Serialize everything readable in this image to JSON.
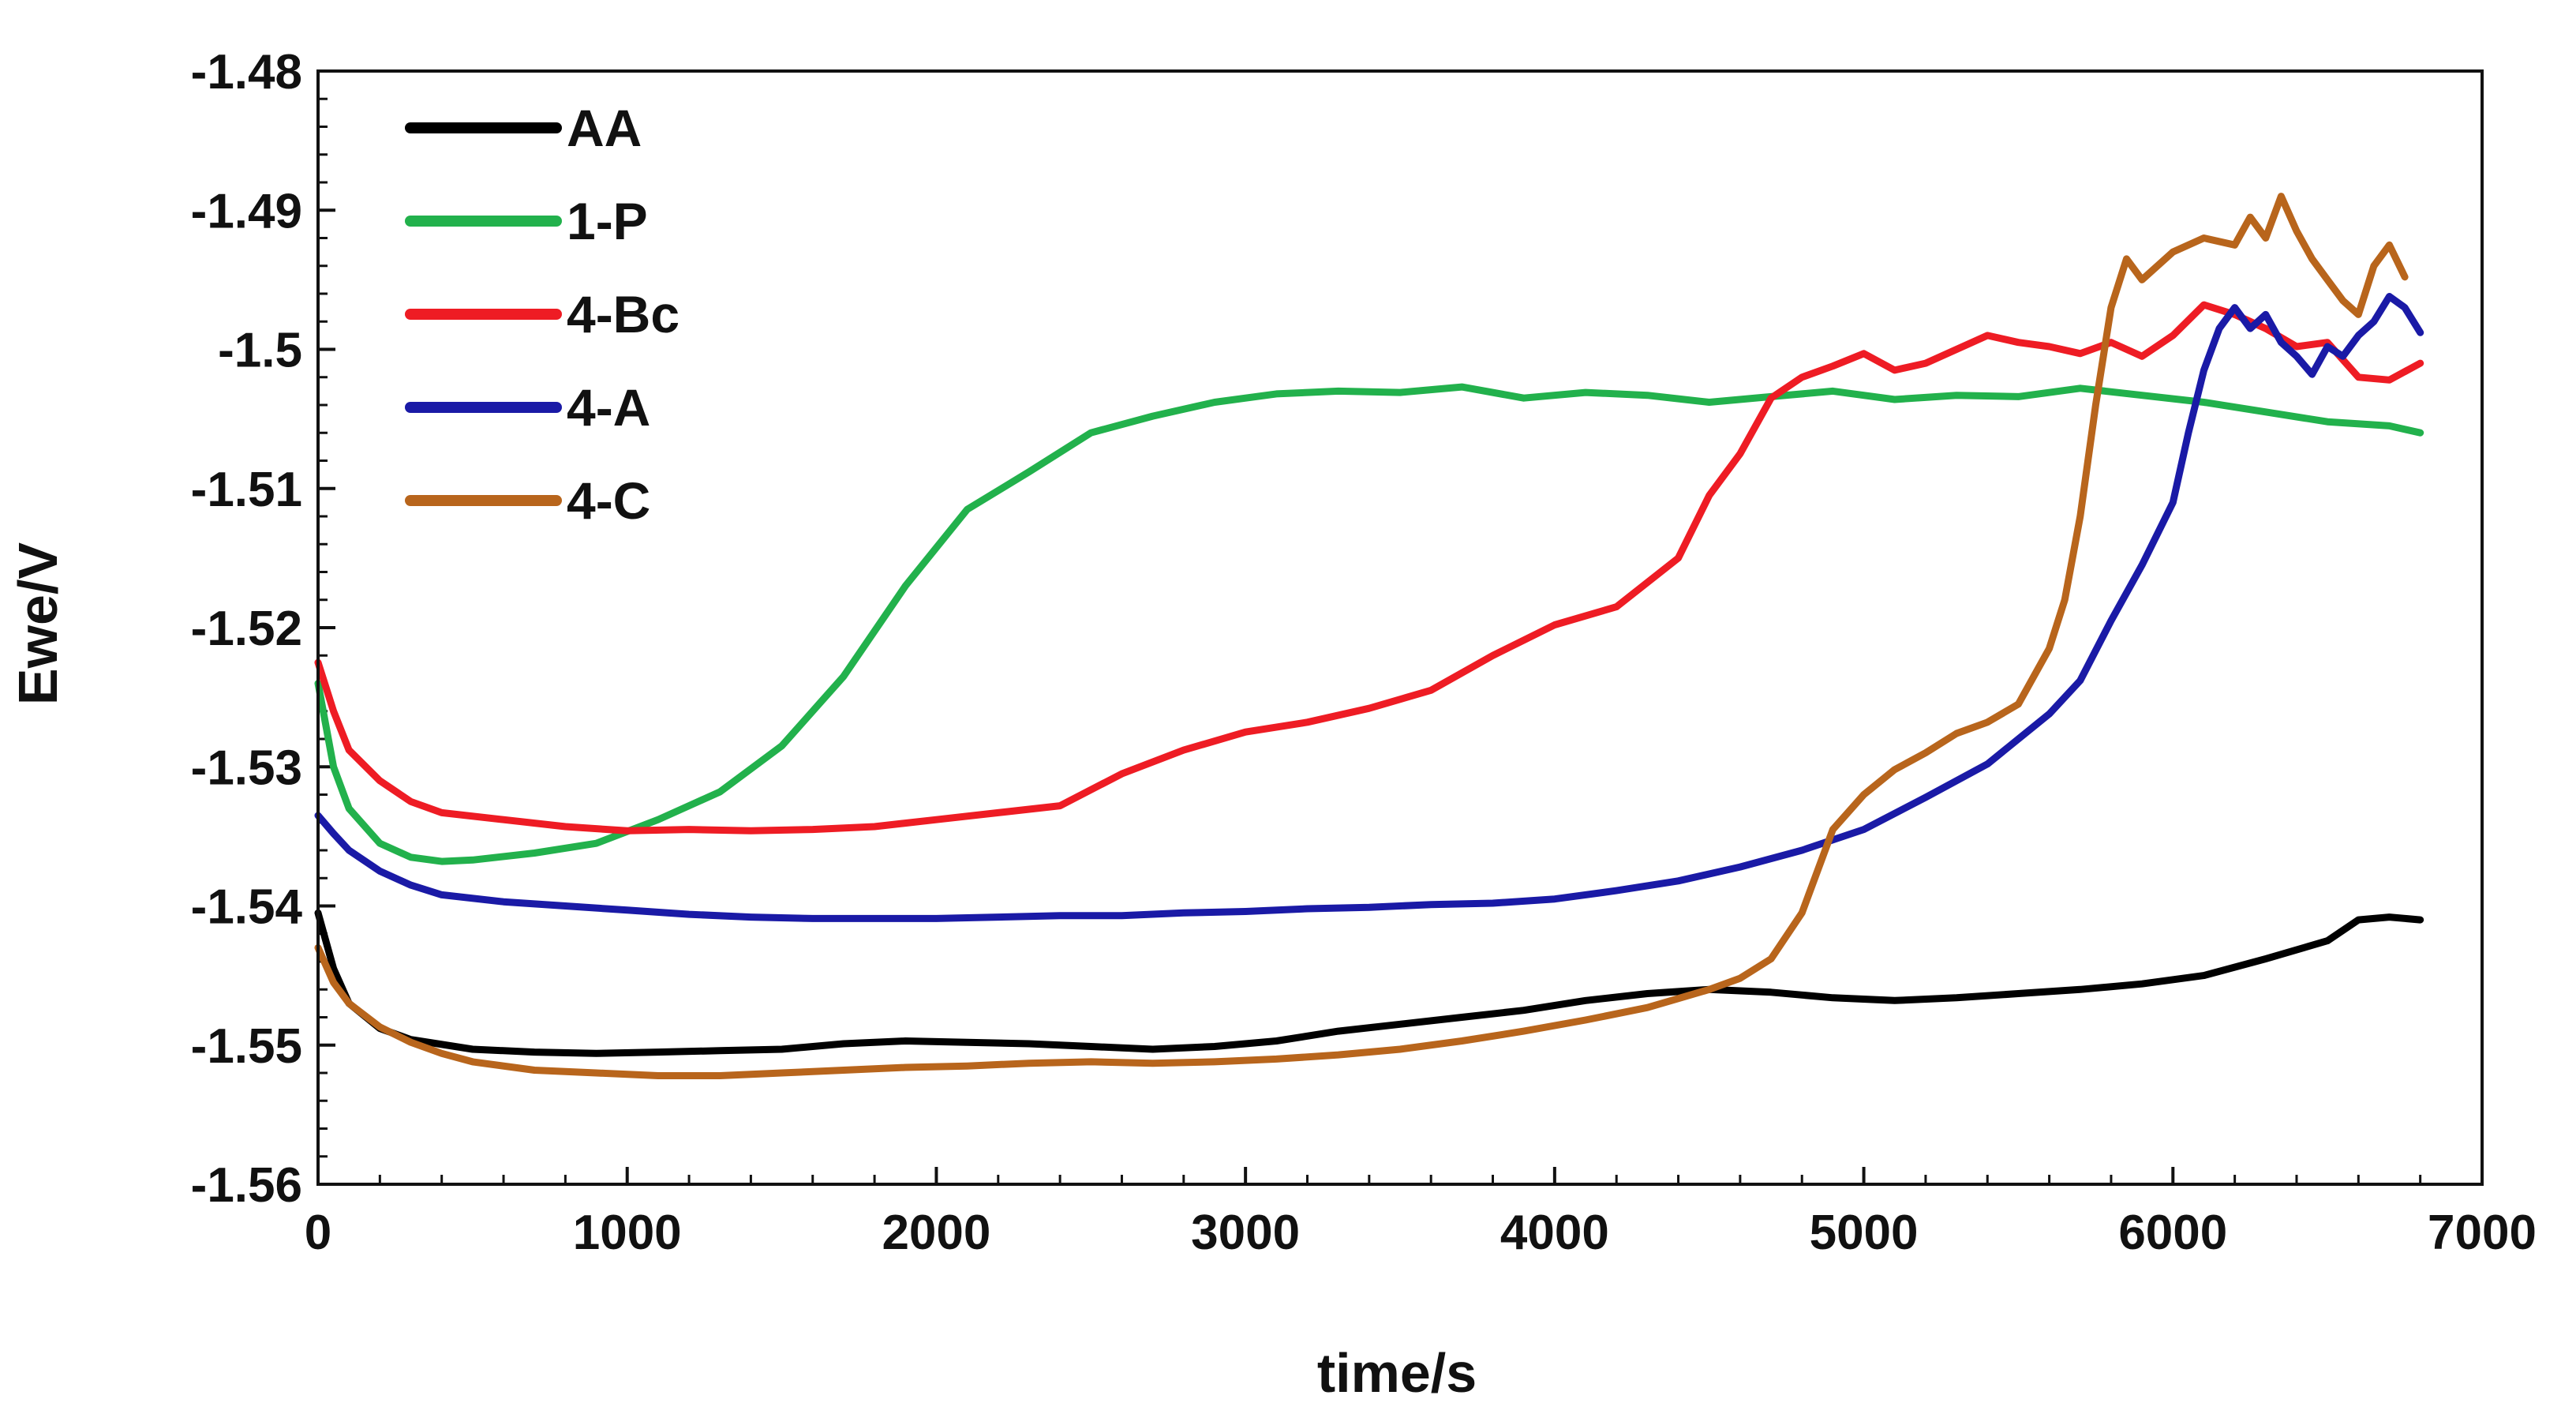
{
  "chart_data": {
    "type": "line",
    "title": "",
    "xlabel": "time/s",
    "ylabel": "Ewe/V",
    "xlim": [
      0,
      7000
    ],
    "ylim": [
      -1.56,
      -1.48
    ],
    "xticks": [
      0,
      1000,
      2000,
      3000,
      4000,
      5000,
      6000,
      7000
    ],
    "yticks": [
      -1.48,
      -1.49,
      -1.5,
      -1.51,
      -1.52,
      -1.53,
      -1.54,
      -1.55,
      -1.56
    ],
    "xtick_labels": [
      "0",
      "1000",
      "2000",
      "3000",
      "4000",
      "5000",
      "6000",
      "7000"
    ],
    "ytick_labels": [
      "-1.48",
      "-1.49",
      "-1.5",
      "-1.51",
      "-1.52",
      "-1.53",
      "-1.54",
      "-1.55",
      "-1.56"
    ],
    "grid": false,
    "legend_position": "top-left",
    "series": [
      {
        "name": "AA",
        "color": "#000000",
        "x": [
          0,
          50,
          100,
          200,
          300,
          500,
          700,
          900,
          1100,
          1300,
          1500,
          1700,
          1900,
          2100,
          2300,
          2500,
          2700,
          2900,
          3100,
          3300,
          3500,
          3700,
          3900,
          4100,
          4300,
          4500,
          4700,
          4900,
          5100,
          5300,
          5500,
          5700,
          5900,
          6100,
          6300,
          6500,
          6600,
          6700,
          6800
        ],
        "y": [
          -1.5405,
          -1.5445,
          -1.547,
          -1.5488,
          -1.5496,
          -1.5503,
          -1.5505,
          -1.5506,
          -1.5505,
          -1.5504,
          -1.5503,
          -1.5499,
          -1.5497,
          -1.5498,
          -1.5499,
          -1.5501,
          -1.5503,
          -1.5501,
          -1.5497,
          -1.549,
          -1.5485,
          -1.548,
          -1.5475,
          -1.5468,
          -1.5463,
          -1.546,
          -1.5462,
          -1.5466,
          -1.5468,
          -1.5466,
          -1.5463,
          -1.546,
          -1.5456,
          -1.545,
          -1.5438,
          -1.5425,
          -1.541,
          -1.5408,
          -1.541
        ]
      },
      {
        "name": "1-P",
        "color": "#22b14c",
        "x": [
          0,
          50,
          100,
          200,
          300,
          400,
          500,
          700,
          900,
          1100,
          1300,
          1500,
          1700,
          1900,
          2100,
          2300,
          2500,
          2700,
          2900,
          3100,
          3300,
          3500,
          3700,
          3900,
          4100,
          4300,
          4500,
          4700,
          4900,
          5100,
          5300,
          5500,
          5700,
          5900,
          6100,
          6300,
          6500,
          6700,
          6800
        ],
        "y": [
          -1.524,
          -1.53,
          -1.533,
          -1.5355,
          -1.5365,
          -1.5368,
          -1.5367,
          -1.5362,
          -1.5355,
          -1.5338,
          -1.5318,
          -1.5285,
          -1.5235,
          -1.517,
          -1.5115,
          -1.5088,
          -1.506,
          -1.5048,
          -1.5038,
          -1.5032,
          -1.503,
          -1.5031,
          -1.5027,
          -1.5035,
          -1.5031,
          -1.5033,
          -1.5038,
          -1.5034,
          -1.503,
          -1.5036,
          -1.5033,
          -1.5034,
          -1.5028,
          -1.5033,
          -1.5038,
          -1.5045,
          -1.5052,
          -1.5055,
          -1.506
        ]
      },
      {
        "name": "4-Bc",
        "color": "#ee1c24",
        "x": [
          0,
          50,
          100,
          200,
          300,
          400,
          600,
          800,
          1000,
          1200,
          1400,
          1600,
          1800,
          2000,
          2200,
          2400,
          2600,
          2800,
          3000,
          3200,
          3400,
          3600,
          3800,
          4000,
          4200,
          4400,
          4500,
          4600,
          4700,
          4800,
          4900,
          5000,
          5100,
          5200,
          5300,
          5400,
          5500,
          5600,
          5700,
          5800,
          5900,
          6000,
          6100,
          6200,
          6300,
          6400,
          6500,
          6600,
          6700,
          6800
        ],
        "y": [
          -1.5225,
          -1.526,
          -1.5288,
          -1.531,
          -1.5325,
          -1.5333,
          -1.5338,
          -1.5343,
          -1.5346,
          -1.5345,
          -1.5346,
          -1.5345,
          -1.5343,
          -1.5338,
          -1.5333,
          -1.5328,
          -1.5305,
          -1.5288,
          -1.5275,
          -1.5268,
          -1.5258,
          -1.5245,
          -1.522,
          -1.5198,
          -1.5185,
          -1.515,
          -1.5105,
          -1.5075,
          -1.5035,
          -1.502,
          -1.5012,
          -1.5003,
          -1.5015,
          -1.501,
          -1.5,
          -1.499,
          -1.4995,
          -1.4998,
          -1.5003,
          -1.4995,
          -1.5005,
          -1.499,
          -1.4968,
          -1.4975,
          -1.4985,
          -1.4998,
          -1.4995,
          -1.502,
          -1.5022,
          -1.501
        ]
      },
      {
        "name": "4-A",
        "color": "#1a1aa6",
        "x": [
          0,
          50,
          100,
          200,
          300,
          400,
          600,
          800,
          1000,
          1200,
          1400,
          1600,
          1800,
          2000,
          2200,
          2400,
          2600,
          2800,
          3000,
          3200,
          3400,
          3600,
          3800,
          4000,
          4200,
          4400,
          4600,
          4800,
          5000,
          5200,
          5400,
          5600,
          5700,
          5800,
          5900,
          6000,
          6050,
          6100,
          6150,
          6200,
          6250,
          6300,
          6350,
          6400,
          6450,
          6500,
          6550,
          6600,
          6650,
          6700,
          6750,
          6800
        ],
        "y": [
          -1.5335,
          -1.5348,
          -1.536,
          -1.5375,
          -1.5385,
          -1.5392,
          -1.5397,
          -1.54,
          -1.5403,
          -1.5406,
          -1.5408,
          -1.5409,
          -1.5409,
          -1.5409,
          -1.5408,
          -1.5407,
          -1.5407,
          -1.5405,
          -1.5404,
          -1.5402,
          -1.5401,
          -1.5399,
          -1.5398,
          -1.5395,
          -1.5389,
          -1.5382,
          -1.5372,
          -1.536,
          -1.5345,
          -1.5322,
          -1.5298,
          -1.5262,
          -1.5238,
          -1.5195,
          -1.5155,
          -1.511,
          -1.506,
          -1.5015,
          -1.4985,
          -1.497,
          -1.4985,
          -1.4975,
          -1.4995,
          -1.5005,
          -1.5018,
          -1.4998,
          -1.5005,
          -1.499,
          -1.498,
          -1.4962,
          -1.497,
          -1.4988
        ]
      },
      {
        "name": "4-C",
        "color": "#b8651c",
        "x": [
          0,
          50,
          100,
          200,
          300,
          400,
          500,
          700,
          900,
          1100,
          1300,
          1500,
          1700,
          1900,
          2100,
          2300,
          2500,
          2700,
          2900,
          3100,
          3300,
          3500,
          3700,
          3900,
          4100,
          4300,
          4500,
          4600,
          4700,
          4800,
          4900,
          5000,
          5100,
          5200,
          5300,
          5400,
          5500,
          5600,
          5650,
          5700,
          5750,
          5800,
          5850,
          5900,
          6000,
          6100,
          6200,
          6250,
          6300,
          6350,
          6400,
          6450,
          6500,
          6550,
          6600,
          6650,
          6700,
          6750
        ],
        "y": [
          -1.543,
          -1.5455,
          -1.547,
          -1.5487,
          -1.5498,
          -1.5506,
          -1.5512,
          -1.5518,
          -1.552,
          -1.5522,
          -1.5522,
          -1.552,
          -1.5518,
          -1.5516,
          -1.5515,
          -1.5513,
          -1.5512,
          -1.5513,
          -1.5512,
          -1.551,
          -1.5507,
          -1.5503,
          -1.5497,
          -1.549,
          -1.5482,
          -1.5473,
          -1.546,
          -1.5452,
          -1.5438,
          -1.5405,
          -1.5345,
          -1.532,
          -1.5302,
          -1.529,
          -1.5276,
          -1.5268,
          -1.5255,
          -1.5215,
          -1.518,
          -1.512,
          -1.504,
          -1.497,
          -1.4935,
          -1.495,
          -1.493,
          -1.492,
          -1.4925,
          -1.4905,
          -1.492,
          -1.489,
          -1.4915,
          -1.4935,
          -1.495,
          -1.4965,
          -1.4975,
          -1.494,
          -1.4925,
          -1.4948
        ]
      }
    ]
  }
}
